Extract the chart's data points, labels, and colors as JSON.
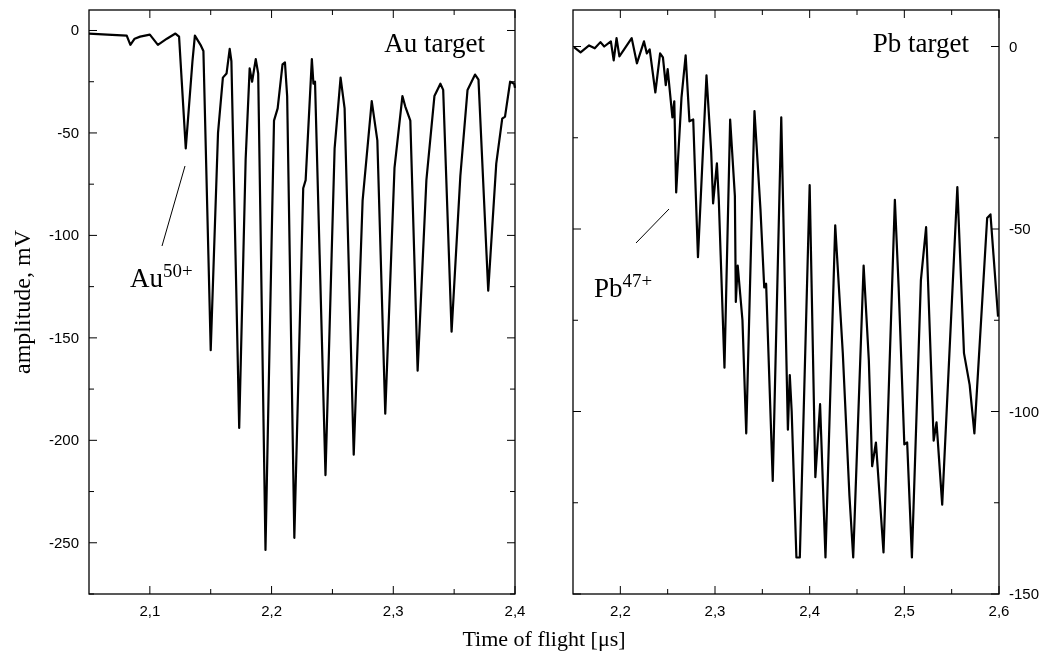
{
  "chart_data": [
    {
      "type": "line",
      "xlabel": "Time of flight [μs]",
      "ylabel": "amplitude, mV",
      "xlim": [
        2.05,
        2.4
      ],
      "ylim": [
        -275,
        10
      ],
      "xticks": [
        {
          "value": 2.1,
          "label": "2,1"
        },
        {
          "value": 2.15,
          "label": null
        },
        {
          "value": 2.2,
          "label": "2,2"
        },
        {
          "value": 2.25,
          "label": null
        },
        {
          "value": 2.3,
          "label": "2,3"
        },
        {
          "value": 2.35,
          "label": null
        },
        {
          "value": 2.4,
          "label": "2,4"
        }
      ],
      "yticks": [
        {
          "value": -275,
          "label": null
        },
        -250,
        {
          "value": -225,
          "label": null
        },
        -200,
        {
          "value": -175,
          "label": null
        },
        -150,
        {
          "value": -125,
          "label": null
        },
        -100,
        {
          "value": -75,
          "label": null
        },
        -50,
        {
          "value": -25,
          "label": null
        },
        0
      ],
      "annotations": [
        "Au target",
        "Au$^{50+}$"
      ],
      "series": [
        {
          "color": "#000000",
          "x": [
            2.05,
            2.065,
            2.081,
            2.084,
            2.0875,
            2.092,
            2.1,
            2.1066,
            2.114,
            2.121,
            2.124,
            2.1295,
            2.135,
            2.137,
            2.1416,
            2.144,
            2.15,
            2.156,
            2.16,
            2.163,
            2.1656,
            2.167,
            2.1734,
            2.1787,
            2.182,
            2.184,
            2.187,
            2.189,
            2.195,
            2.202,
            2.205,
            2.209,
            2.211,
            2.2128,
            2.2187,
            2.226,
            2.228,
            2.2331,
            2.2344,
            2.2357,
            2.2443,
            2.2518,
            2.2567,
            2.26,
            2.2675,
            2.2748,
            2.2823,
            2.2869,
            2.2934,
            2.301,
            2.3075,
            2.3098,
            2.314,
            2.32,
            2.3272,
            2.3338,
            2.3387,
            2.341,
            2.3479,
            2.3551,
            2.361,
            2.3672,
            2.37,
            2.378,
            2.3846,
            2.3895,
            2.3918,
            2.396,
            2.3993,
            2.4
          ],
          "values": [
            -1.5,
            -2,
            -2.5,
            -7,
            -4,
            -3,
            -2,
            -7,
            -4,
            -1.5,
            -3,
            -57.5,
            -15,
            -2.5,
            -7,
            -10,
            -156,
            -50,
            -23,
            -21,
            -9,
            -15,
            -194,
            -63,
            -18.5,
            -25,
            -14,
            -21,
            -253.5,
            -44,
            -38,
            -16.5,
            -15.6,
            -32,
            -247.6,
            -77,
            -73,
            -14,
            -26,
            -25,
            -217,
            -57.5,
            -23,
            -38,
            -207,
            -83,
            -34.5,
            -53.6,
            -187,
            -67,
            -32,
            -37,
            -44,
            -166,
            -73,
            -32,
            -26,
            -29,
            -147,
            -71,
            -29,
            -21.5,
            -24,
            -127,
            -65,
            -43,
            -42,
            -25,
            -26,
            -28
          ]
        }
      ]
    },
    {
      "type": "line",
      "xlim": [
        2.15,
        2.6
      ],
      "ylim": [
        -150,
        10
      ],
      "xticks": [
        {
          "value": 2.2,
          "label": "2,2"
        },
        {
          "value": 2.25,
          "label": null
        },
        {
          "value": 2.3,
          "label": "2,3"
        },
        {
          "value": 2.35,
          "label": null
        },
        {
          "value": 2.4,
          "label": "2,4"
        },
        {
          "value": 2.45,
          "label": null
        },
        {
          "value": 2.5,
          "label": "2,5"
        },
        {
          "value": 2.55,
          "label": null
        },
        {
          "value": 2.6,
          "label": "2,6"
        }
      ],
      "yticks": [
        -150,
        {
          "value": -125,
          "label": null
        },
        -100,
        {
          "value": -75,
          "label": null
        },
        -50,
        {
          "value": -25,
          "label": null
        },
        0
      ],
      "annotations": [
        "Pb target",
        "Pb$^{47+}$"
      ],
      "series": [
        {
          "color": "#000000",
          "x": [
            2.151,
            2.158,
            2.167,
            2.173,
            2.179,
            2.183,
            2.19,
            2.193,
            2.196,
            2.199,
            2.204,
            2.212,
            2.2175,
            2.225,
            2.228,
            2.231,
            2.237,
            2.242,
            2.245,
            2.248,
            2.25,
            2.255,
            2.257,
            2.259,
            2.2646,
            2.269,
            2.273,
            2.277,
            2.282,
            2.291,
            2.296,
            2.298,
            2.302,
            2.304,
            2.31,
            2.316,
            2.321,
            2.322,
            2.324,
            2.329,
            2.333,
            2.3417,
            2.348,
            2.352,
            2.354,
            2.361,
            2.37,
            2.377,
            2.379,
            2.381,
            2.386,
            2.3896,
            2.4,
            2.406,
            2.411,
            2.4167,
            2.427,
            2.435,
            2.442,
            2.446,
            2.457,
            2.4625,
            2.466,
            2.47,
            2.478,
            2.49,
            2.494,
            2.5,
            2.503,
            2.508,
            2.5175,
            2.523,
            2.531,
            2.534,
            2.54,
            2.556,
            2.563,
            2.569,
            2.574,
            2.5875,
            2.591,
            2.599
          ],
          "values": [
            -0.2,
            -1.6,
            0.3,
            -0.5,
            1.2,
            0,
            1.4,
            -3.8,
            2.3,
            -2.7,
            -0.8,
            2.3,
            -4.6,
            1.4,
            -1.9,
            -0.8,
            -12.6,
            -1.9,
            -3,
            -10.6,
            -6.2,
            -19.4,
            -15,
            -40,
            -14,
            -2.4,
            -20.5,
            -20,
            -57.7,
            -7.9,
            -29,
            -43,
            -32,
            -42,
            -88,
            -20,
            -41,
            -70,
            -60,
            -75,
            -106,
            -17.7,
            -44.5,
            -66,
            -65,
            -119,
            -19.4,
            -105,
            -90,
            -100,
            -140,
            -140,
            -38,
            -118,
            -98,
            -140,
            -49,
            -84,
            -123,
            -140,
            -60,
            -86,
            -115,
            -108.5,
            -138.6,
            -42,
            -66,
            -109,
            -108.5,
            -140,
            -64,
            -49.5,
            -108,
            -103,
            -125.5,
            -38.5,
            -84,
            -92.7,
            -106,
            -47,
            -46,
            -74
          ]
        }
      ]
    }
  ]
}
